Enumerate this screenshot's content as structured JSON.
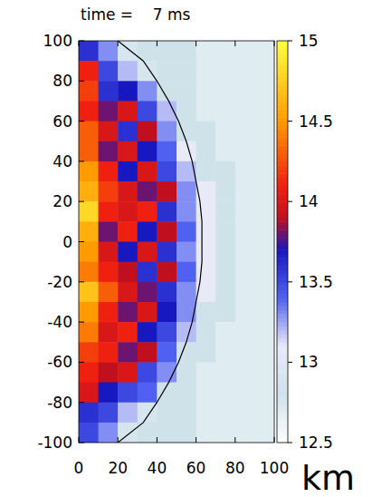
{
  "chart_data": {
    "type": "heatmap",
    "title": "time =    7 ms",
    "x_label": "km",
    "xlim": [
      0,
      100
    ],
    "xticks": [
      0,
      20,
      40,
      60,
      80,
      100
    ],
    "ylim": [
      -100,
      100
    ],
    "yticks": [
      100,
      80,
      60,
      40,
      20,
      0,
      -20,
      -40,
      -60,
      -80,
      -100
    ],
    "x_edges": [
      0,
      10,
      20,
      30,
      40,
      50,
      60,
      70,
      80,
      90,
      100
    ],
    "y_edges": [
      100,
      90,
      80,
      70,
      60,
      50,
      40,
      30,
      20,
      10,
      0,
      -10,
      -20,
      -30,
      -40,
      -50,
      -60,
      -70,
      -80,
      -90,
      -100
    ],
    "cells": [
      [
        13.6,
        13.3,
        12.9,
        12.8,
        12.8,
        12.8,
        12.7,
        12.7,
        12.7,
        12.7
      ],
      [
        14.1,
        13.5,
        13.2,
        12.9,
        12.8,
        12.8,
        12.7,
        12.7,
        12.7,
        12.7
      ],
      [
        14.2,
        13.6,
        13.7,
        13.3,
        12.8,
        12.8,
        12.7,
        12.7,
        12.7,
        12.7
      ],
      [
        14.1,
        13.8,
        14.0,
        13.5,
        13.2,
        12.8,
        12.7,
        12.7,
        12.7,
        12.7
      ],
      [
        14.3,
        14.0,
        13.6,
        13.9,
        13.3,
        12.8,
        12.8,
        12.7,
        12.7,
        12.7
      ],
      [
        14.3,
        13.8,
        14.0,
        13.7,
        13.4,
        13.1,
        12.8,
        12.7,
        12.7,
        12.7
      ],
      [
        14.5,
        14.1,
        13.7,
        14.0,
        13.5,
        13.2,
        12.8,
        12.8,
        12.7,
        12.7
      ],
      [
        14.6,
        14.2,
        14.0,
        13.8,
        13.9,
        13.3,
        13.1,
        12.8,
        12.7,
        12.7
      ],
      [
        14.8,
        14.1,
        14.0,
        14.1,
        13.6,
        13.3,
        13.1,
        12.8,
        12.7,
        12.7
      ],
      [
        14.6,
        13.8,
        14.1,
        13.7,
        13.9,
        13.4,
        13.1,
        12.8,
        12.7,
        12.7
      ],
      [
        14.5,
        14.0,
        13.7,
        14.0,
        13.6,
        13.3,
        13.1,
        12.8,
        12.7,
        12.7
      ],
      [
        14.4,
        14.1,
        13.9,
        13.6,
        13.9,
        13.4,
        13.1,
        12.8,
        12.7,
        12.7
      ],
      [
        14.7,
        14.3,
        14.0,
        13.8,
        13.6,
        13.3,
        13.1,
        12.8,
        12.7,
        12.7
      ],
      [
        14.5,
        14.1,
        13.8,
        14.0,
        13.7,
        13.3,
        12.8,
        12.8,
        12.7,
        12.7
      ],
      [
        14.4,
        14.0,
        14.1,
        13.7,
        13.5,
        13.2,
        12.8,
        12.7,
        12.7,
        12.7
      ],
      [
        14.2,
        14.1,
        13.8,
        13.9,
        13.4,
        12.8,
        12.8,
        12.7,
        12.7,
        12.7
      ],
      [
        14.1,
        13.9,
        14.0,
        13.5,
        13.3,
        12.8,
        12.7,
        12.7,
        12.7,
        12.7
      ],
      [
        14.0,
        13.7,
        13.5,
        13.4,
        12.8,
        12.8,
        12.7,
        12.7,
        12.7,
        12.7
      ],
      [
        13.6,
        13.5,
        13.2,
        12.9,
        12.8,
        12.8,
        12.7,
        12.7,
        12.7,
        12.7
      ],
      [
        13.5,
        13.3,
        12.9,
        12.8,
        12.8,
        12.8,
        12.7,
        12.7,
        12.7,
        12.7
      ]
    ],
    "shock": {
      "x": [
        20,
        33,
        40,
        46,
        51,
        55,
        58,
        60,
        62,
        63,
        63,
        63,
        62,
        60,
        58,
        55,
        51,
        46,
        40,
        33,
        20
      ],
      "y": [
        100,
        90,
        80,
        70,
        60,
        50,
        40,
        30,
        20,
        10,
        0,
        -10,
        -20,
        -30,
        -40,
        -50,
        -60,
        -70,
        -80,
        -90,
        -100
      ]
    },
    "colorbar": {
      "range": [
        12.5,
        15
      ],
      "ticks": [
        12.5,
        13,
        13.5,
        14,
        14.5,
        15
      ]
    }
  }
}
